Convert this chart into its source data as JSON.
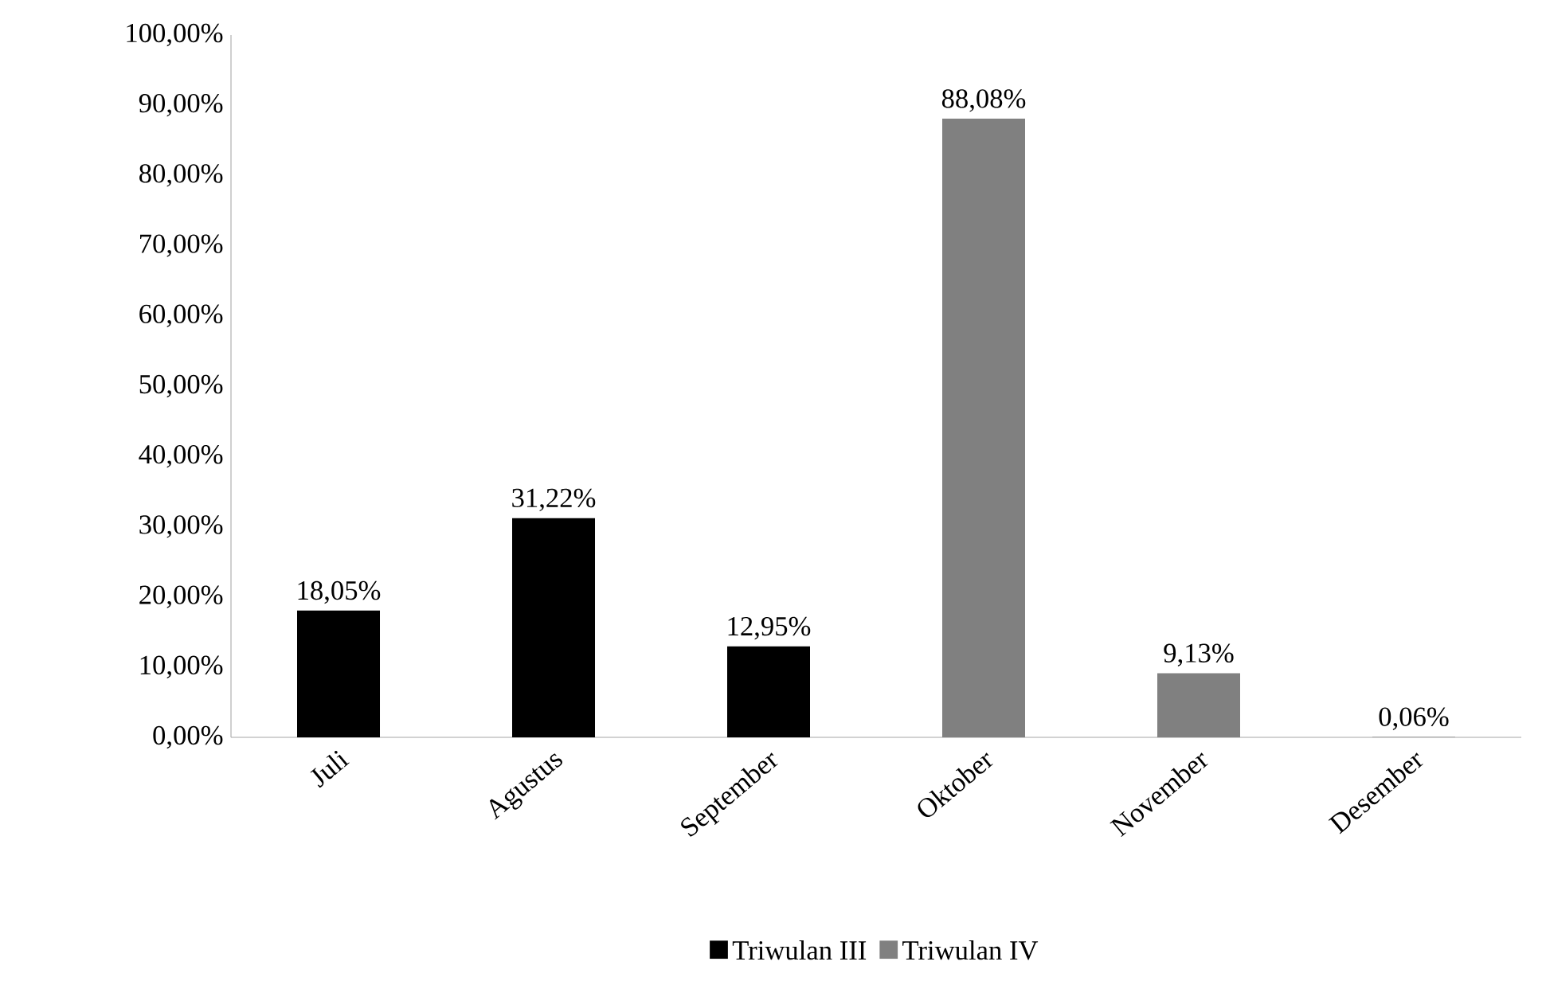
{
  "chart_data": {
    "type": "bar",
    "categories": [
      "Juli",
      "Agustus",
      "September",
      "Oktober",
      "November",
      "Desember"
    ],
    "series": [
      {
        "name": "Triwulan III",
        "color": "#000000",
        "values": [
          18.05,
          31.22,
          12.95,
          null,
          null,
          null
        ],
        "value_labels": [
          "18,05%",
          "31,22%",
          "12,95%",
          null,
          null,
          null
        ]
      },
      {
        "name": "Triwulan IV",
        "color": "#808080",
        "values": [
          null,
          null,
          null,
          88.08,
          9.13,
          0.06
        ],
        "value_labels": [
          null,
          null,
          null,
          "88,08%",
          "9,13%",
          "0,06%"
        ]
      }
    ],
    "ylim": [
      0,
      100
    ],
    "yticks": [
      {
        "value": 0,
        "label": "0,00%"
      },
      {
        "value": 10,
        "label": "10,00%"
      },
      {
        "value": 20,
        "label": "20,00%"
      },
      {
        "value": 30,
        "label": "30,00%"
      },
      {
        "value": 40,
        "label": "40,00%"
      },
      {
        "value": 50,
        "label": "50,00%"
      },
      {
        "value": 60,
        "label": "60,00%"
      },
      {
        "value": 70,
        "label": "70,00%"
      },
      {
        "value": 80,
        "label": "80,00%"
      },
      {
        "value": 90,
        "label": "90,00%"
      },
      {
        "value": 100,
        "label": "100,00%"
      }
    ],
    "grid": false,
    "legend": "bottom"
  }
}
